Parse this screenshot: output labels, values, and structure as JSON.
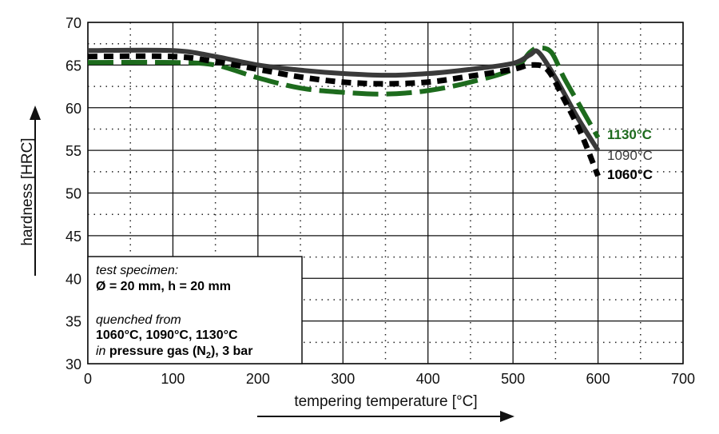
{
  "chart_data": {
    "type": "line",
    "xlabel": "tempering temperature [°C]",
    "ylabel": "hardness [HRC]",
    "xlim": [
      0,
      700
    ],
    "ylim": [
      30,
      70
    ],
    "xticks": [
      0,
      100,
      200,
      300,
      400,
      500,
      600,
      700
    ],
    "yticks": [
      30,
      35,
      40,
      45,
      50,
      55,
      60,
      65,
      70
    ],
    "grid": true,
    "series": [
      {
        "name": "1130°C",
        "color": "#1d6b1d",
        "style": "long-dash",
        "x": [
          0,
          100,
          150,
          200,
          250,
          300,
          350,
          400,
          450,
          500,
          520,
          530,
          545,
          560,
          580,
          600
        ],
        "y": [
          65.3,
          65.3,
          65.0,
          63.5,
          62.3,
          61.8,
          61.6,
          62.0,
          63.0,
          64.5,
          66.5,
          67.0,
          66.5,
          63.5,
          60.0,
          56.5
        ]
      },
      {
        "name": "1090°C",
        "color": "#3a3a3a",
        "style": "solid",
        "x": [
          0,
          100,
          150,
          200,
          250,
          300,
          350,
          400,
          450,
          500,
          520,
          530,
          550,
          575,
          600
        ],
        "y": [
          66.7,
          66.7,
          66.0,
          65.0,
          64.4,
          64.0,
          63.8,
          64.0,
          64.5,
          65.2,
          66.2,
          66.5,
          63.5,
          59.0,
          55.0
        ]
      },
      {
        "name": "1060°C",
        "color": "#000000",
        "style": "dash",
        "x": [
          0,
          100,
          150,
          200,
          250,
          300,
          350,
          400,
          450,
          500,
          520,
          540,
          560,
          580,
          600
        ],
        "y": [
          66.0,
          66.0,
          65.4,
          64.5,
          63.6,
          63.0,
          62.8,
          63.0,
          63.7,
          64.5,
          65.0,
          64.5,
          61.0,
          57.0,
          52.0
        ]
      }
    ],
    "annotation": {
      "line1": "test specimen:",
      "line2": "Ø = 20 mm, h = 20 mm",
      "line3": "quenched from",
      "line4": "1060°C, 1090°C, 1130°C",
      "line5_italic": "in",
      "line5_bold": "pressure gas (N",
      "line5_sub": "2",
      "line5_end": "), 3 bar"
    }
  }
}
